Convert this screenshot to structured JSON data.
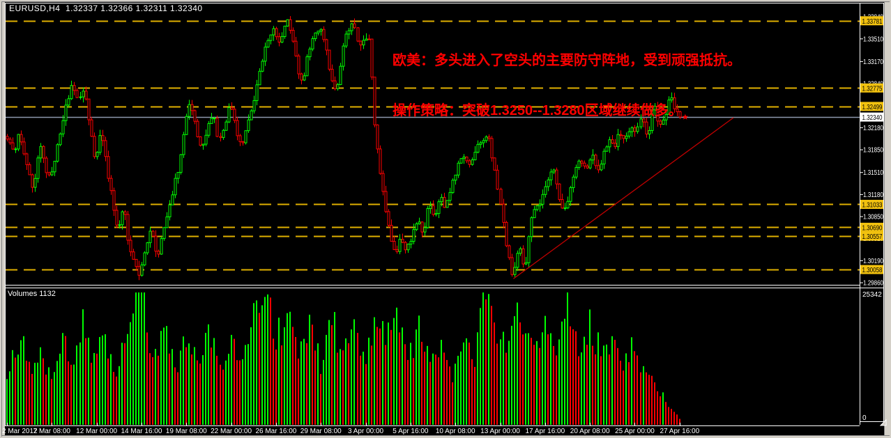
{
  "header": {
    "text": "EURUSD,H4  1.32337 1.32366 1.32311 1.32340",
    "symbol": "EURUSD",
    "timeframe": "H4",
    "ohlc": {
      "open": "1.32337",
      "high": "1.32366",
      "low": "1.32311",
      "close": "1.32340"
    }
  },
  "annotation": {
    "lines": [
      "欧美：多头进入了空头的主要防守阵地，受到顽强抵抗。",
      "操作策略：突破1.3250--1.3280区域继续做多。"
    ],
    "color": "#FF0000"
  },
  "chart_data": {
    "type": "candlestick",
    "title": "EURUSD H4",
    "ylim": [
      1.2985,
      1.3405
    ],
    "bars_total": 241,
    "seed": 20120427,
    "jitter": {
      "close": 0.0011,
      "wick": 0.0009
    },
    "y_axis": {
      "ticks": [
        "1.33840",
        "1.33510",
        "1.33170",
        "1.32840",
        "1.32510",
        "1.32180",
        "1.31850",
        "1.31510",
        "1.31180",
        "1.30850",
        "1.30520",
        "1.30190",
        "1.29860"
      ],
      "badges": [
        "1.33781",
        "1.32775",
        "1.32499",
        "1.31033",
        "1.30690",
        "1.30557",
        "1.30058"
      ],
      "current_badge": "1.32340"
    },
    "x_axis": {
      "labels": [
        "2 Mar 2012",
        "7 Mar 08:00",
        "12 Mar 00:00",
        "14 Mar 16:00",
        "19 Mar 08:00",
        "22 Mar 00:00",
        "26 Mar 16:00",
        "29 Mar 08:00",
        "3 Apr 00:00",
        "5 Apr 16:00",
        "10 Apr 08:00",
        "13 Apr 00:00",
        "17 Apr 16:00",
        "20 Apr 08:00",
        "25 Apr 00:00",
        "27 Apr 16:00"
      ],
      "bars_per_label": 16
    },
    "key_levels": [
      1.33781,
      1.32775,
      1.32499,
      1.31033,
      1.3069,
      1.30557,
      1.30058
    ],
    "current_price": 1.3234,
    "price_path": [
      [
        0,
        1.3205
      ],
      [
        3,
        1.318
      ],
      [
        5,
        1.321
      ],
      [
        8,
        1.315
      ],
      [
        10,
        1.3125
      ],
      [
        12,
        1.3195
      ],
      [
        14,
        1.316
      ],
      [
        16,
        1.314
      ],
      [
        18,
        1.318
      ],
      [
        21,
        1.324
      ],
      [
        24,
        1.3285
      ],
      [
        26,
        1.3258
      ],
      [
        28,
        1.3278
      ],
      [
        30,
        1.321
      ],
      [
        32,
        1.317
      ],
      [
        34,
        1.3215
      ],
      [
        36,
        1.316
      ],
      [
        38,
        1.311
      ],
      [
        40,
        1.3065
      ],
      [
        42,
        1.31
      ],
      [
        44,
        1.304
      ],
      [
        46,
        1.301
      ],
      [
        48,
        1.2999
      ],
      [
        50,
        1.3045
      ],
      [
        52,
        1.3062
      ],
      [
        54,
        1.302
      ],
      [
        56,
        1.306
      ],
      [
        58,
        1.3095
      ],
      [
        60,
        1.313
      ],
      [
        62,
        1.316
      ],
      [
        64,
        1.323
      ],
      [
        66,
        1.3255
      ],
      [
        68,
        1.3215
      ],
      [
        70,
        1.3186
      ],
      [
        72,
        1.3215
      ],
      [
        74,
        1.3239
      ],
      [
        76,
        1.32
      ],
      [
        78,
        1.3226
      ],
      [
        80,
        1.325
      ],
      [
        82,
        1.3215
      ],
      [
        84,
        1.319
      ],
      [
        86,
        1.322
      ],
      [
        88,
        1.325
      ],
      [
        90,
        1.33
      ],
      [
        92,
        1.333
      ],
      [
        94,
        1.335
      ],
      [
        96,
        1.3365
      ],
      [
        98,
        1.334
      ],
      [
        100,
        1.3382
      ],
      [
        102,
        1.336
      ],
      [
        104,
        1.331
      ],
      [
        106,
        1.3285
      ],
      [
        108,
        1.333
      ],
      [
        110,
        1.3355
      ],
      [
        112,
        1.3365
      ],
      [
        114,
        1.3345
      ],
      [
        116,
        1.329
      ],
      [
        118,
        1.327
      ],
      [
        120,
        1.333
      ],
      [
        122,
        1.3365
      ],
      [
        124,
        1.3372
      ],
      [
        126,
        1.334
      ],
      [
        128,
        1.3355
      ],
      [
        130,
        1.3345
      ],
      [
        131,
        1.325
      ],
      [
        133,
        1.316
      ],
      [
        135,
        1.3105
      ],
      [
        137,
        1.306
      ],
      [
        139,
        1.3028
      ],
      [
        141,
        1.3055
      ],
      [
        143,
        1.3032
      ],
      [
        145,
        1.306
      ],
      [
        147,
        1.308
      ],
      [
        149,
        1.3055
      ],
      [
        151,
        1.311
      ],
      [
        153,
        1.3085
      ],
      [
        155,
        1.312
      ],
      [
        157,
        1.3095
      ],
      [
        159,
        1.313
      ],
      [
        161,
        1.3155
      ],
      [
        163,
        1.318
      ],
      [
        165,
        1.316
      ],
      [
        168,
        1.319
      ],
      [
        170,
        1.32
      ],
      [
        172,
        1.321
      ],
      [
        174,
        1.316
      ],
      [
        176,
        1.312
      ],
      [
        178,
        1.306
      ],
      [
        180,
        1.3005
      ],
      [
        181,
        1.2992
      ],
      [
        183,
        1.305
      ],
      [
        185,
        1.2998
      ],
      [
        187,
        1.307
      ],
      [
        189,
        1.3105
      ],
      [
        191,
        1.311
      ],
      [
        193,
        1.3135
      ],
      [
        195,
        1.316
      ],
      [
        197,
        1.312
      ],
      [
        199,
        1.3085
      ],
      [
        201,
        1.312
      ],
      [
        203,
        1.315
      ],
      [
        205,
        1.3175
      ],
      [
        207,
        1.3155
      ],
      [
        209,
        1.318
      ],
      [
        211,
        1.315
      ],
      [
        213,
        1.3175
      ],
      [
        215,
        1.32
      ],
      [
        217,
        1.319
      ],
      [
        219,
        1.321
      ],
      [
        221,
        1.3195
      ],
      [
        223,
        1.3222
      ],
      [
        225,
        1.3215
      ],
      [
        227,
        1.323
      ],
      [
        229,
        1.32
      ],
      [
        231,
        1.3255
      ],
      [
        233,
        1.3225
      ],
      [
        235,
        1.3232
      ],
      [
        237,
        1.3262
      ],
      [
        239,
        1.3248
      ],
      [
        240,
        1.3234
      ]
    ],
    "volume_panel": {
      "label": "Volumes 1132",
      "indicator": "Volumes",
      "current": 1132,
      "max": 25342,
      "max_label": "25342",
      "min_label": "0"
    },
    "volume_path": [
      [
        0,
        9000
      ],
      [
        2,
        13000
      ],
      [
        5,
        16000
      ],
      [
        8,
        11000
      ],
      [
        12,
        14000
      ],
      [
        16,
        9500
      ],
      [
        20,
        15000
      ],
      [
        24,
        12000
      ],
      [
        26,
        18000
      ],
      [
        28,
        20300
      ],
      [
        31,
        12000
      ],
      [
        35,
        17000
      ],
      [
        39,
        10000
      ],
      [
        44,
        20000
      ],
      [
        48,
        24500
      ],
      [
        52,
        14000
      ],
      [
        56,
        18000
      ],
      [
        60,
        11000
      ],
      [
        64,
        16000
      ],
      [
        68,
        12500
      ],
      [
        72,
        18500
      ],
      [
        76,
        10500
      ],
      [
        80,
        15000
      ],
      [
        84,
        12000
      ],
      [
        88,
        20000
      ],
      [
        91,
        25342
      ],
      [
        94,
        22000
      ],
      [
        96,
        16000
      ],
      [
        100,
        21000
      ],
      [
        104,
        13000
      ],
      [
        108,
        18000
      ],
      [
        112,
        12000
      ],
      [
        116,
        19500
      ],
      [
        120,
        14000
      ],
      [
        124,
        20000
      ],
      [
        128,
        12000
      ],
      [
        131,
        22000
      ],
      [
        135,
        16000
      ],
      [
        139,
        20000
      ],
      [
        143,
        12000
      ],
      [
        147,
        17500
      ],
      [
        151,
        11000
      ],
      [
        155,
        15000
      ],
      [
        159,
        10000
      ],
      [
        163,
        17000
      ],
      [
        167,
        12000
      ],
      [
        170,
        23500
      ],
      [
        173,
        21000
      ],
      [
        177,
        15000
      ],
      [
        181,
        22000
      ],
      [
        184,
        17000
      ],
      [
        188,
        13000
      ],
      [
        192,
        19000
      ],
      [
        196,
        12000
      ],
      [
        200,
        23800
      ],
      [
        204,
        16000
      ],
      [
        208,
        20000
      ],
      [
        212,
        13000
      ],
      [
        216,
        17000
      ],
      [
        220,
        11000
      ],
      [
        224,
        15000
      ],
      [
        228,
        10000
      ],
      [
        231,
        8000
      ],
      [
        234,
        5500
      ],
      [
        236,
        3800
      ],
      [
        238,
        2200
      ],
      [
        240,
        1132
      ]
    ],
    "trendline": {
      "from": {
        "bar": 180.7,
        "price": 1.2992
      },
      "to": {
        "bar": 259.2,
        "price": 1.3233
      },
      "color": "#C00000"
    },
    "marker": {
      "bar": 242,
      "price": 1.3234,
      "shape": "star",
      "color": "#FF0000"
    },
    "colors": {
      "background": "#000000",
      "bull": "#00FF00",
      "bear": "#FF0000",
      "level_line": "#DFAF00",
      "badge_bg": "#F2C20F",
      "badge_text": "#000000",
      "current_line": "#8E99AD",
      "current_badge_bg": "#FFFFFF",
      "axis_text": "#FFFFFF",
      "frame": "#FFFFFF",
      "window_chrome": "#D4D0C8"
    }
  }
}
